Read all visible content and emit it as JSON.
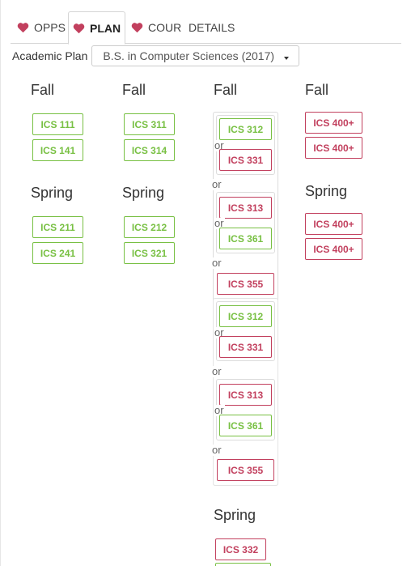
{
  "tabs": [
    {
      "label": "OPPS",
      "icon": "heart-icon",
      "active": false
    },
    {
      "label": "PLAN",
      "icon": "heart-icon",
      "active": true
    },
    {
      "label": "COUR",
      "icon": "heart-icon",
      "active": false
    },
    {
      "label": "DETAILS",
      "active": false
    }
  ],
  "plan": {
    "label": "Academic Plan",
    "selected": "B.S. in Computer Sciences (2017)"
  },
  "colors": {
    "heart": "#c2405e",
    "satisfied": "#78c043",
    "needed": "#c2405e"
  },
  "or_label": "or",
  "columns": [
    {
      "terms": [
        {
          "name": "Fall",
          "courses": [
            "ICS 111",
            "ICS 141"
          ]
        },
        {
          "name": "Spring",
          "courses": [
            "ICS 211",
            "ICS 241"
          ]
        }
      ]
    },
    {
      "terms": [
        {
          "name": "Fall",
          "courses": [
            "ICS 311",
            "ICS 314"
          ]
        },
        {
          "name": "Spring",
          "courses": [
            "ICS 212",
            "ICS 321"
          ]
        }
      ]
    },
    {
      "terms": [
        {
          "name": "Fall",
          "choice_groups": [
            {
              "options": [
                {
                  "group": [
                    "ICS 312",
                    "ICS 331"
                  ]
                },
                {
                  "group": [
                    "ICS 313",
                    "ICS 361"
                  ]
                },
                {
                  "course": "ICS 355"
                }
              ]
            },
            {
              "options": [
                {
                  "group": [
                    "ICS 312",
                    "ICS 331"
                  ]
                },
                {
                  "group": [
                    "ICS 313",
                    "ICS 361"
                  ]
                },
                {
                  "course": "ICS 355"
                }
              ]
            }
          ]
        },
        {
          "name": "Spring",
          "courses": [
            "ICS 332"
          ]
        }
      ]
    },
    {
      "terms": [
        {
          "name": "Fall",
          "courses": [
            "ICS 400+",
            "ICS 400+"
          ]
        },
        {
          "name": "Spring",
          "courses": [
            "ICS 400+",
            "ICS 400+"
          ]
        }
      ]
    }
  ]
}
